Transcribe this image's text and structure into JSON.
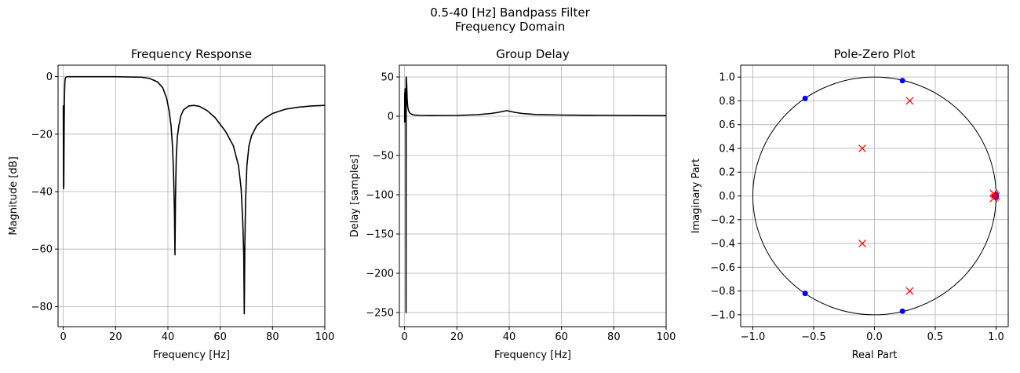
{
  "figure": {
    "suptitle_line1": "0.5-40 [Hz] Bandpass Filter",
    "suptitle_line2": "Frequency Domain"
  },
  "chart_data": [
    {
      "type": "line",
      "title": "Frequency Response",
      "xlabel": "Frequency [Hz]",
      "ylabel": "Magnitude [dB]",
      "xlim": [
        -2,
        100
      ],
      "ylim": [
        -87,
        4
      ],
      "xticks": [
        0,
        20,
        40,
        60,
        80,
        100
      ],
      "xtick_labels": [
        "0",
        "20",
        "40",
        "60",
        "80",
        "100"
      ],
      "yticks": [
        0,
        -20,
        -40,
        -60,
        -80
      ],
      "ytick_labels": [
        "0",
        "−20",
        "−40",
        "−60",
        "−80"
      ],
      "grid": true,
      "line_color": "#000000",
      "series": [
        {
          "x": [
            0.0,
            0.1,
            0.2,
            0.3,
            0.4,
            0.5,
            0.6,
            0.7,
            0.8,
            1,
            1.5,
            2,
            5,
            10,
            20,
            30,
            33,
            36,
            38,
            39.5,
            40.5,
            41.2,
            41.8,
            42.2,
            42.5,
            42.7,
            42.9,
            43.2,
            43.6,
            44.2,
            45,
            46,
            48,
            50,
            52,
            55,
            58,
            62,
            65,
            67,
            68,
            68.6,
            69.0,
            69.2,
            69.4,
            69.7,
            70.2,
            71,
            72,
            74,
            77,
            80,
            85,
            90,
            95,
            100
          ],
          "y": [
            -10,
            -39,
            -37.5,
            -20,
            -10,
            -5,
            -2,
            -1,
            -0.5,
            -0.2,
            0,
            0,
            0,
            0,
            0,
            -0.2,
            -0.6,
            -1.8,
            -3.8,
            -7.5,
            -12,
            -17,
            -25,
            -35,
            -47,
            -62,
            -42,
            -28,
            -21,
            -17,
            -13.5,
            -11.5,
            -10.2,
            -10,
            -10.3,
            -11.8,
            -14.2,
            -19,
            -24,
            -31,
            -39,
            -50,
            -62,
            -82.5,
            -60,
            -43,
            -31,
            -24,
            -20.5,
            -17,
            -14.5,
            -12.8,
            -11.3,
            -10.6,
            -10.2,
            -10
          ]
        }
      ]
    },
    {
      "type": "line",
      "title": "Group Delay",
      "xlabel": "Frequency [Hz]",
      "ylabel": "Delay [samples]",
      "xlim": [
        -2,
        100
      ],
      "ylim": [
        -268,
        65
      ],
      "xticks": [
        0,
        20,
        40,
        60,
        80,
        100
      ],
      "xtick_labels": [
        "0",
        "20",
        "40",
        "60",
        "80",
        "100"
      ],
      "yticks": [
        50,
        0,
        -50,
        -100,
        -150,
        -200,
        -250
      ],
      "ytick_labels": [
        "50",
        "0",
        "−50",
        "−100",
        "−150",
        "−200",
        "−250"
      ],
      "grid": true,
      "line_color": "#000000",
      "series": [
        {
          "x": [
            0.0,
            0.05,
            0.1,
            0.15,
            0.2,
            0.3,
            0.4,
            0.5,
            0.55,
            0.6,
            0.65,
            0.7,
            0.8,
            0.9,
            1.0,
            1.2,
            1.5,
            2,
            2.5,
            3,
            4,
            6,
            10,
            20,
            28,
            33,
            36,
            38,
            39,
            40,
            42,
            45,
            50,
            60,
            70,
            80,
            90,
            100
          ],
          "y": [
            -8,
            30,
            -5,
            10,
            35,
            -2,
            10,
            20,
            -250,
            48,
            50,
            47,
            40,
            30,
            20,
            12,
            7,
            4,
            3,
            2,
            1.5,
            1,
            0.8,
            1,
            2,
            3.5,
            5,
            6.5,
            7,
            6.5,
            5,
            3.5,
            2.2,
            1.5,
            1.2,
            1,
            0.8,
            0.7
          ]
        }
      ]
    },
    {
      "type": "scatter",
      "title": "Pole-Zero Plot",
      "xlabel": "Real Part",
      "ylabel": "Imaginary Part",
      "xlim": [
        -1.1,
        1.1
      ],
      "ylim": [
        -1.1,
        1.1
      ],
      "xticks": [
        -1.0,
        -0.5,
        0.0,
        0.5,
        1.0
      ],
      "xtick_labels": [
        "−1.0",
        "−0.5",
        "0.0",
        "0.5",
        "1.0"
      ],
      "yticks": [
        1.0,
        0.8,
        0.6,
        0.4,
        0.2,
        0.0,
        -0.2,
        -0.4,
        -0.6,
        -0.8,
        -1.0
      ],
      "ytick_labels": [
        "1.0",
        "0.8",
        "0.6",
        "0.4",
        "0.2",
        "0.0",
        "−0.2",
        "−0.4",
        "−0.6",
        "−0.8",
        "−1.0"
      ],
      "grid": true,
      "unit_circle": true,
      "zero_color": "#0000ff",
      "pole_color": "#ff0000",
      "zeros": [
        [
          0.23,
          0.97
        ],
        [
          -0.57,
          0.82
        ],
        [
          -0.57,
          -0.82
        ],
        [
          0.23,
          -0.97
        ],
        [
          1.0,
          0.0
        ],
        [
          1.0,
          0.01
        ],
        [
          1.0,
          -0.01
        ],
        [
          0.99,
          0.0
        ]
      ],
      "poles": [
        [
          0.29,
          0.8
        ],
        [
          -0.1,
          0.4
        ],
        [
          -0.1,
          -0.4
        ],
        [
          0.29,
          -0.8
        ],
        [
          0.99,
          0.01
        ],
        [
          0.99,
          -0.01
        ],
        [
          0.98,
          0.02
        ],
        [
          0.98,
          -0.02
        ],
        [
          1.0,
          0.0
        ]
      ]
    }
  ]
}
